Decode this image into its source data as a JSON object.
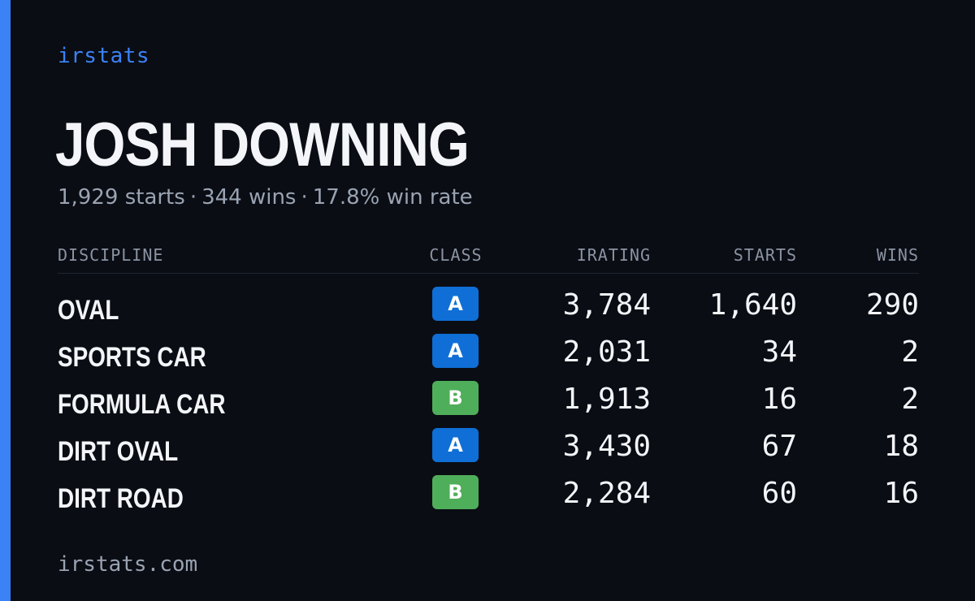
{
  "brand": "irstats",
  "player": {
    "name": "JOSH DOWNING",
    "starts": "1,929 starts",
    "wins": "344 wins",
    "win_rate": "17.8% win rate",
    "separator": "·"
  },
  "table": {
    "headers": {
      "discipline": "DISCIPLINE",
      "class": "CLASS",
      "irating": "IRATING",
      "starts": "STARTS",
      "wins": "WINS"
    },
    "rows": [
      {
        "discipline": "OVAL",
        "class": "A",
        "irating": "3,784",
        "starts": "1,640",
        "wins": "290"
      },
      {
        "discipline": "SPORTS CAR",
        "class": "A",
        "irating": "2,031",
        "starts": "34",
        "wins": "2"
      },
      {
        "discipline": "FORMULA CAR",
        "class": "B",
        "irating": "1,913",
        "starts": "16",
        "wins": "2"
      },
      {
        "discipline": "DIRT OVAL",
        "class": "A",
        "irating": "3,430",
        "starts": "67",
        "wins": "18"
      },
      {
        "discipline": "DIRT ROAD",
        "class": "B",
        "irating": "2,284",
        "starts": "60",
        "wins": "16"
      }
    ]
  },
  "class_colors": {
    "A": "#0f6fd6",
    "B": "#4fae5a"
  },
  "footer": "irstats.com",
  "colors": {
    "background": "#0a0d14",
    "accent": "#3b82f6",
    "text_primary": "#f3f5f9",
    "text_secondary": "#9aa3b2"
  }
}
